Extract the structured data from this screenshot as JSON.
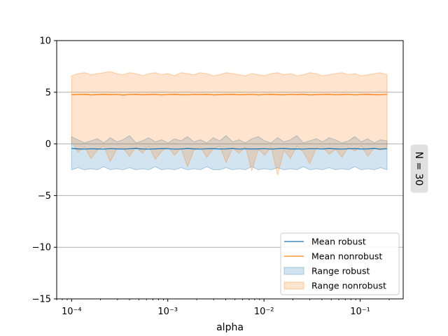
{
  "chart_data": {
    "type": "line",
    "xlabel": "alpha",
    "ylabel": "",
    "xscale": "log",
    "xlim": [
      7e-05,
      0.28
    ],
    "ylim": [
      -15,
      10
    ],
    "yticks": [
      10,
      5,
      0,
      -5,
      -10,
      -15
    ],
    "ytick_labels": [
      "10",
      "5",
      "0",
      "−5",
      "−10",
      "−15"
    ],
    "xticks": [
      0.0001,
      0.001,
      0.01,
      0.1
    ],
    "xtick_labels": [
      "10⁻⁴",
      "10⁻³",
      "10⁻²",
      "10⁻¹"
    ],
    "grid": "horizontal",
    "legend_position": "lower-right",
    "side_label": "N = 30",
    "x_range": [
      0.0001,
      0.19
    ],
    "series": [
      {
        "name": "Mean robust",
        "kind": "line",
        "color": "#1f77b4",
        "y": [
          -0.45,
          -0.48,
          -0.5,
          -0.47,
          -0.49,
          -0.5,
          -0.46,
          -0.48,
          -0.5,
          -0.47,
          -0.45,
          -0.49,
          -0.5,
          -0.48,
          -0.46,
          -0.47,
          -0.5,
          -0.49,
          -0.45,
          -0.48,
          -0.5,
          -0.47,
          -0.46,
          -0.49,
          -0.48,
          -0.45,
          -0.5,
          -0.47,
          -0.49,
          -0.48,
          -0.46,
          -0.5,
          -0.47,
          -0.45,
          -0.49,
          -0.48,
          -0.5,
          -0.46,
          -0.47,
          -0.49,
          -0.45,
          -0.48,
          -0.5,
          -0.47,
          -0.46,
          -0.49,
          -0.48,
          -0.45,
          -0.5,
          -0.47
        ]
      },
      {
        "name": "Mean nonrobust",
        "kind": "line",
        "color": "#ff7f0e",
        "y": [
          4.75,
          4.78,
          4.8,
          4.74,
          4.77,
          4.8,
          4.76,
          4.79,
          4.73,
          4.78,
          4.8,
          4.75,
          4.77,
          4.79,
          4.74,
          4.78,
          4.8,
          4.76,
          4.75,
          4.79,
          4.77,
          4.8,
          4.74,
          4.76,
          4.78,
          4.8,
          4.75,
          4.77,
          4.79,
          4.74,
          4.78,
          4.8,
          4.76,
          4.75,
          4.79,
          4.77,
          4.8,
          4.74,
          4.76,
          4.78,
          4.8,
          4.75,
          4.77,
          4.79,
          4.74,
          4.78,
          4.8,
          4.76,
          4.75,
          4.79
        ]
      },
      {
        "name": "Range robust",
        "kind": "band",
        "color": "#1f77b4",
        "upper": [
          0.7,
          0.4,
          0.1,
          0.3,
          0.5,
          0.1,
          0.6,
          0.2,
          0.4,
          0.8,
          0.1,
          0.3,
          0.6,
          0.2,
          0.4,
          0.1,
          0.5,
          0.3,
          0.7,
          0.2,
          0.4,
          0.1,
          0.6,
          0.3,
          0.8,
          0.2,
          0.4,
          0.1,
          0.5,
          0.7,
          0.3,
          0.1,
          0.6,
          0.2,
          0.4,
          0.8,
          0.1,
          0.3,
          0.5,
          0.2,
          0.6,
          0.4,
          0.1,
          0.3,
          0.7,
          0.2,
          0.5,
          0.1,
          0.4,
          0.3
        ],
        "lower": [
          -2.5,
          -2.3,
          -2.5,
          -2.4,
          -2.5,
          -2.2,
          -2.5,
          -2.4,
          -2.5,
          -2.3,
          -2.5,
          -2.4,
          -2.5,
          -2.2,
          -2.5,
          -2.4,
          -2.5,
          -2.3,
          -2.5,
          -2.4,
          -2.5,
          -2.2,
          -2.5,
          -2.5,
          -2.3,
          -2.5,
          -2.4,
          -2.5,
          -2.2,
          -2.5,
          -2.4,
          -2.5,
          -2.3,
          -2.5,
          -2.4,
          -2.5,
          -2.2,
          -2.5,
          -2.4,
          -2.5,
          -2.3,
          -2.5,
          -2.4,
          -2.5,
          -2.2,
          -2.5,
          -2.4,
          -2.5,
          -2.3,
          -2.5
        ]
      },
      {
        "name": "Range nonrobust",
        "kind": "band",
        "color": "#ff7f0e",
        "upper": [
          6.6,
          6.8,
          6.9,
          6.7,
          6.8,
          6.9,
          7.0,
          6.8,
          6.7,
          6.9,
          6.8,
          6.6,
          6.8,
          6.9,
          6.7,
          6.8,
          6.6,
          6.9,
          6.8,
          6.7,
          6.9,
          6.8,
          6.6,
          6.7,
          6.9,
          6.8,
          6.7,
          6.6,
          6.8,
          6.7,
          6.6,
          6.8,
          6.9,
          6.7,
          6.8,
          6.6,
          6.7,
          6.9,
          6.8,
          6.6,
          6.7,
          6.8,
          6.9,
          6.7,
          6.8,
          6.6,
          6.7,
          6.8,
          6.9,
          6.7
        ],
        "lower": [
          2.2,
          1.8,
          1.6,
          2.1,
          1.9,
          1.7,
          2.0,
          1.6,
          1.9,
          2.2,
          1.8,
          1.6,
          2.0,
          1.7,
          2.1,
          1.9,
          1.6,
          2.2,
          1.8,
          1.7,
          2.0,
          2.1,
          1.6,
          1.9,
          2.2,
          1.8,
          1.7,
          2.0,
          1.6,
          2.1,
          1.9,
          1.8,
          2.2,
          1.7,
          2.0,
          1.6,
          1.9,
          2.1,
          1.8,
          2.2,
          1.7,
          2.0,
          1.6,
          2.1,
          1.9,
          1.8,
          2.2,
          1.7,
          2.0,
          1.8
        ]
      }
    ],
    "overlap_dips": [
      0.2,
      -0.8,
      -0.3,
      -1.4,
      -0.6,
      -0.2,
      -1.7,
      -0.5,
      -0.4,
      -1.2,
      -0.3,
      -0.9,
      -0.2,
      -1.5,
      -0.7,
      -0.3,
      -1.1,
      -0.4,
      -2.2,
      -0.6,
      -0.3,
      -1.3,
      -0.5,
      -0.2,
      -1.8,
      -0.4,
      -0.9,
      -0.3,
      -2.6,
      -0.5,
      -1.1,
      -0.3,
      -3.0,
      -0.6,
      -1.4,
      -0.2,
      -0.8,
      -1.9,
      -0.4,
      -0.3,
      -1.0,
      -0.5,
      -1.3,
      -0.3,
      -0.7,
      -0.2,
      -1.2,
      -0.4,
      -0.6,
      -0.3
    ]
  }
}
